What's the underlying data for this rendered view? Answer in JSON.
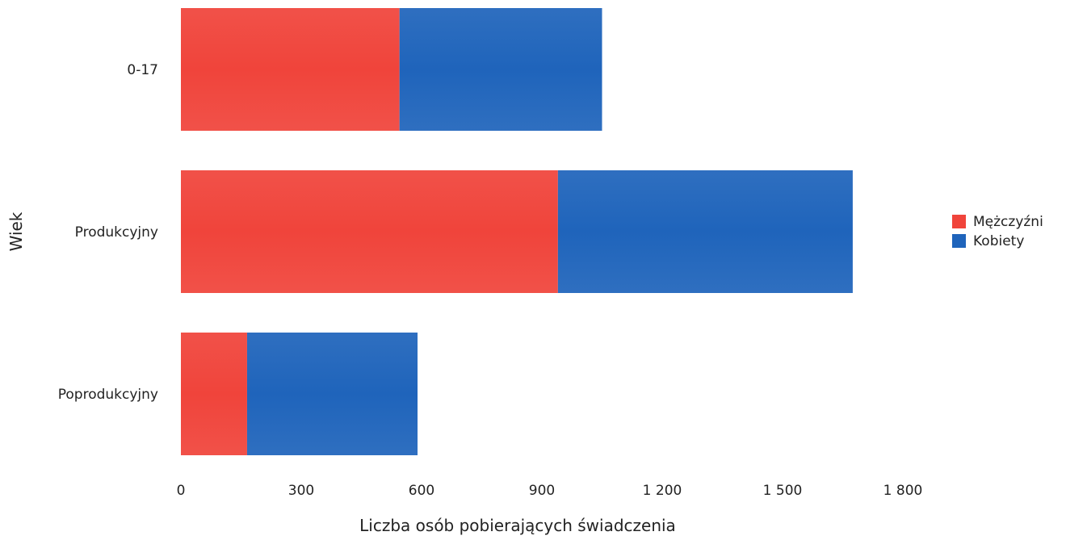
{
  "chart_data": {
    "type": "bar",
    "orientation": "horizontal",
    "stacked": true,
    "categories": [
      "0-17",
      "Produkcyjny",
      "Poprodukcyjny"
    ],
    "series": [
      {
        "name": "Mężczyźni",
        "values": [
          545,
          940,
          165
        ],
        "color": "#f0443b"
      },
      {
        "name": "Kobiety",
        "values": [
          505,
          735,
          425
        ],
        "color": "#1f64bb"
      }
    ],
    "xlabel": "Liczba osób pobierających świadczenia",
    "ylabel": "Wiek",
    "xlim": [
      0,
      1800
    ],
    "xticks": [
      0,
      300,
      600,
      900,
      1200,
      1500,
      1800
    ],
    "xtick_labels": [
      "0",
      "300",
      "600",
      "900",
      "1 200",
      "1 500",
      "1 800"
    ],
    "grid": false,
    "legend_position": "right"
  }
}
